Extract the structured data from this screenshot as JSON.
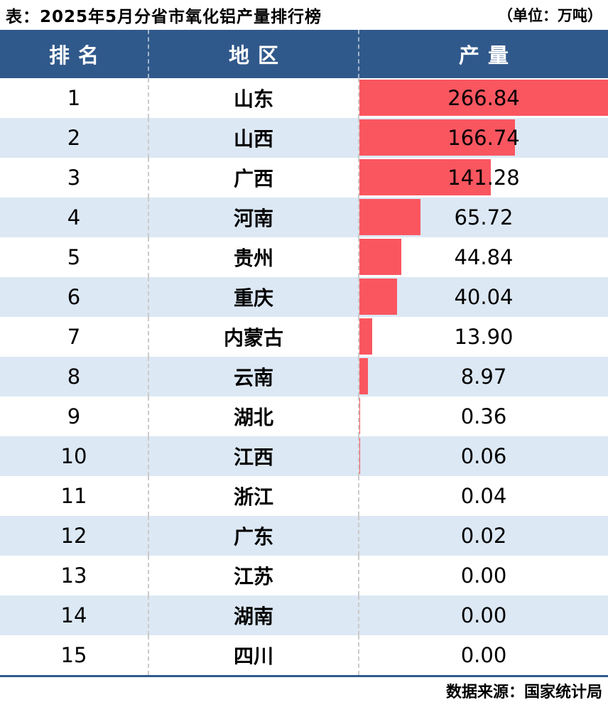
{
  "page": {
    "title": "表：2025年5月分省市氧化铝产量排行榜",
    "unit_note": "（单位：万吨）",
    "source_note": "数据来源：国家统计局"
  },
  "table": {
    "columns": [
      {
        "key": "rank",
        "label": "排名"
      },
      {
        "key": "region",
        "label": "地区"
      },
      {
        "key": "value",
        "label": "产量"
      }
    ],
    "rows": [
      {
        "rank": "1",
        "region": "山东",
        "value": 266.84,
        "value_display": "266.84"
      },
      {
        "rank": "2",
        "region": "山西",
        "value": 166.74,
        "value_display": "166.74"
      },
      {
        "rank": "3",
        "region": "广西",
        "value": 141.28,
        "value_display": "141.28"
      },
      {
        "rank": "4",
        "region": "河南",
        "value": 65.72,
        "value_display": "65.72"
      },
      {
        "rank": "5",
        "region": "贵州",
        "value": 44.84,
        "value_display": "44.84"
      },
      {
        "rank": "6",
        "region": "重庆",
        "value": 40.04,
        "value_display": "40.04"
      },
      {
        "rank": "7",
        "region": "内蒙古",
        "value": 13.9,
        "value_display": "13.90"
      },
      {
        "rank": "8",
        "region": "云南",
        "value": 8.97,
        "value_display": "8.97"
      },
      {
        "rank": "9",
        "region": "湖北",
        "value": 0.36,
        "value_display": "0.36"
      },
      {
        "rank": "10",
        "region": "江西",
        "value": 0.06,
        "value_display": "0.06"
      },
      {
        "rank": "11",
        "region": "浙江",
        "value": 0.04,
        "value_display": "0.04"
      },
      {
        "rank": "12",
        "region": "广东",
        "value": 0.02,
        "value_display": "0.02"
      },
      {
        "rank": "13",
        "region": "江苏",
        "value": 0.0,
        "value_display": "0.00"
      },
      {
        "rank": "14",
        "region": "湖南",
        "value": 0.0,
        "value_display": "0.00"
      },
      {
        "rank": "15",
        "region": "四川",
        "value": 0.0,
        "value_display": "0.00"
      }
    ]
  },
  "colors": {
    "header_bg": "#30598B",
    "header_text": "#FFFFFF",
    "bar": "#FA5660",
    "row_alt_bg": "#DCE8F4",
    "footer_line": "#30598B",
    "body_text": "#000000"
  },
  "chart_data": {
    "type": "bar",
    "orientation": "horizontal",
    "title": "2025年5月分省市氧化铝产量排行榜",
    "unit": "万吨",
    "categories": [
      "山东",
      "山西",
      "广西",
      "河南",
      "贵州",
      "重庆",
      "内蒙古",
      "云南",
      "湖北",
      "江西",
      "浙江",
      "广东",
      "江苏",
      "湖南",
      "四川"
    ],
    "values": [
      266.84,
      166.74,
      141.28,
      65.72,
      44.84,
      40.04,
      13.9,
      8.97,
      0.36,
      0.06,
      0.04,
      0.02,
      0.0,
      0.0,
      0.0
    ],
    "xlim": [
      0,
      266.84
    ],
    "max_value": 266.84,
    "grid": false,
    "legend": false,
    "source": "国家统计局"
  }
}
